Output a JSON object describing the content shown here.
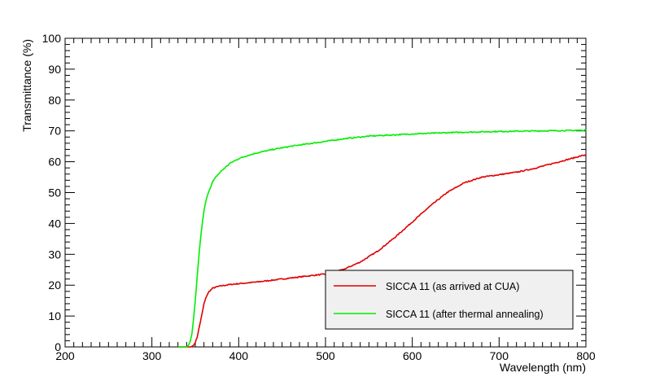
{
  "chart_data": {
    "type": "line",
    "xlabel": "Wavelength (nm)",
    "ylabel": "Transmittance (%)",
    "xlim": [
      200,
      800
    ],
    "ylim": [
      0,
      100
    ],
    "x_ticks": [
      200,
      300,
      400,
      500,
      600,
      700,
      800
    ],
    "y_ticks": [
      0,
      10,
      20,
      30,
      40,
      50,
      60,
      70,
      80,
      90,
      100
    ],
    "grid": false,
    "legend_position": "bottom-right",
    "series": [
      {
        "name": "SICCA 11 (as arrived at CUA)",
        "color": "#e00000",
        "x": [
          345,
          348,
          350,
          352,
          355,
          358,
          360,
          363,
          366,
          370,
          375,
          380,
          390,
          400,
          420,
          450,
          480,
          500,
          520,
          540,
          560,
          580,
          600,
          620,
          640,
          660,
          680,
          700,
          720,
          740,
          760,
          780,
          800
        ],
        "y": [
          0,
          0.5,
          1.5,
          3,
          7,
          11,
          14,
          16.5,
          18,
          19,
          19.5,
          19.8,
          20.2,
          20.5,
          21,
          22,
          23,
          23.6,
          25,
          27.5,
          31,
          35.5,
          40.5,
          45.5,
          50,
          53.2,
          55,
          55.8,
          56.6,
          57.8,
          59.3,
          60.8,
          62.3
        ]
      },
      {
        "name": "SICCA 11 (after thermal annealing)",
        "color": "#00ee00",
        "x": [
          340,
          342,
          344,
          346,
          348,
          350,
          352,
          354,
          356,
          358,
          360,
          362,
          365,
          370,
          375,
          380,
          390,
          400,
          410,
          420,
          440,
          460,
          480,
          500,
          520,
          550,
          600,
          650,
          700,
          750,
          800
        ],
        "y": [
          0,
          0.5,
          1.5,
          4,
          9,
          15,
          22,
          29,
          35,
          40,
          44,
          47,
          50,
          53.5,
          55.5,
          57,
          59.5,
          61,
          62,
          62.8,
          64,
          65,
          65.8,
          66.6,
          67.4,
          68.3,
          69,
          69.5,
          69.8,
          70,
          70.2
        ]
      }
    ]
  }
}
